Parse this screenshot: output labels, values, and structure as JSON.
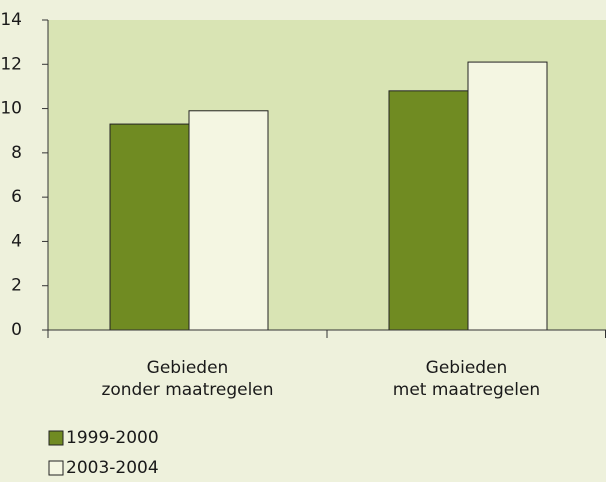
{
  "chart_data": {
    "type": "bar",
    "categories": [
      "Gebieden\nzonder maatregelen",
      "Gebieden\nmet maatregelen"
    ],
    "series": [
      {
        "name": "1999-2000",
        "color": "#708b22",
        "values": [
          9.3,
          10.8
        ]
      },
      {
        "name": "2003-2004",
        "color": "#f4f6e2",
        "values": [
          9.9,
          12.1
        ]
      }
    ],
    "ylim": [
      0,
      14
    ],
    "yticks": [
      0,
      2,
      4,
      6,
      8,
      10,
      12,
      14
    ]
  }
}
